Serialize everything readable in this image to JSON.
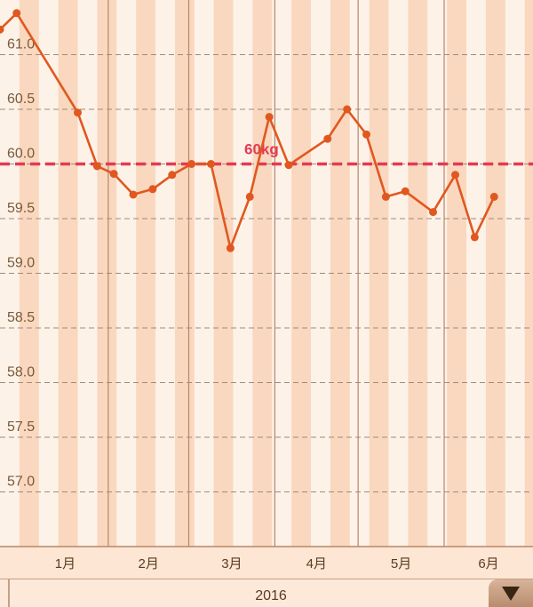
{
  "chart_data": {
    "type": "line",
    "title": "",
    "xlabel": "2016",
    "ylabel": "",
    "year_label": "2016",
    "ylim": [
      56.5,
      61.5
    ],
    "y_ticks": [
      57.0,
      57.5,
      58.0,
      58.5,
      59.0,
      59.5,
      60.0,
      60.5,
      61.0
    ],
    "y_tick_labels": [
      "57.0",
      "57.5",
      "58.0",
      "58.5",
      "59.0",
      "59.5",
      "60.0",
      "60.5",
      "61.0"
    ],
    "x_range": [
      "2015-12-24",
      "2016-07-03"
    ],
    "months": [
      {
        "label": "1月",
        "start": "2016-01-01"
      },
      {
        "label": "2月",
        "start": "2016-02-01"
      },
      {
        "label": "3月",
        "start": "2016-03-01"
      },
      {
        "label": "4月",
        "start": "2016-04-01"
      },
      {
        "label": "5月",
        "start": "2016-05-01"
      },
      {
        "label": "6月",
        "start": "2016-06-01"
      }
    ],
    "goal": {
      "value": 60.0,
      "label": "60kg"
    },
    "series": [
      {
        "points": [
          {
            "x": "2015-12-24",
            "y": 61.23
          },
          {
            "x": "2015-12-30",
            "y": 61.38
          },
          {
            "x": "2016-01-21",
            "y": 60.47
          },
          {
            "x": "2016-01-28",
            "y": 59.98
          },
          {
            "x": "2016-02-03",
            "y": 59.91
          },
          {
            "x": "2016-02-10",
            "y": 59.72
          },
          {
            "x": "2016-02-17",
            "y": 59.77
          },
          {
            "x": "2016-02-24",
            "y": 59.9
          },
          {
            "x": "2016-03-02",
            "y": 60.0
          },
          {
            "x": "2016-03-09",
            "y": 60.0
          },
          {
            "x": "2016-03-16",
            "y": 59.23
          },
          {
            "x": "2016-03-23",
            "y": 59.7
          },
          {
            "x": "2016-03-30",
            "y": 60.43
          },
          {
            "x": "2016-04-06",
            "y": 59.99
          },
          {
            "x": "2016-04-20",
            "y": 60.23
          },
          {
            "x": "2016-04-27",
            "y": 60.5
          },
          {
            "x": "2016-05-04",
            "y": 60.27
          },
          {
            "x": "2016-05-11",
            "y": 59.7
          },
          {
            "x": "2016-05-18",
            "y": 59.75
          },
          {
            "x": "2016-05-28",
            "y": 59.56
          },
          {
            "x": "2016-06-05",
            "y": 59.9
          },
          {
            "x": "2016-06-12",
            "y": 59.33
          },
          {
            "x": "2016-06-19",
            "y": 59.7
          }
        ]
      }
    ],
    "colors": {
      "line": "#e0581f",
      "goal": "#e23b52",
      "stripe_light": "#fdf2e8",
      "stripe_dark": "#f9d8bf",
      "background": "#fde9d9",
      "grid": "#a08a78",
      "month_line": "#b7866a"
    }
  }
}
